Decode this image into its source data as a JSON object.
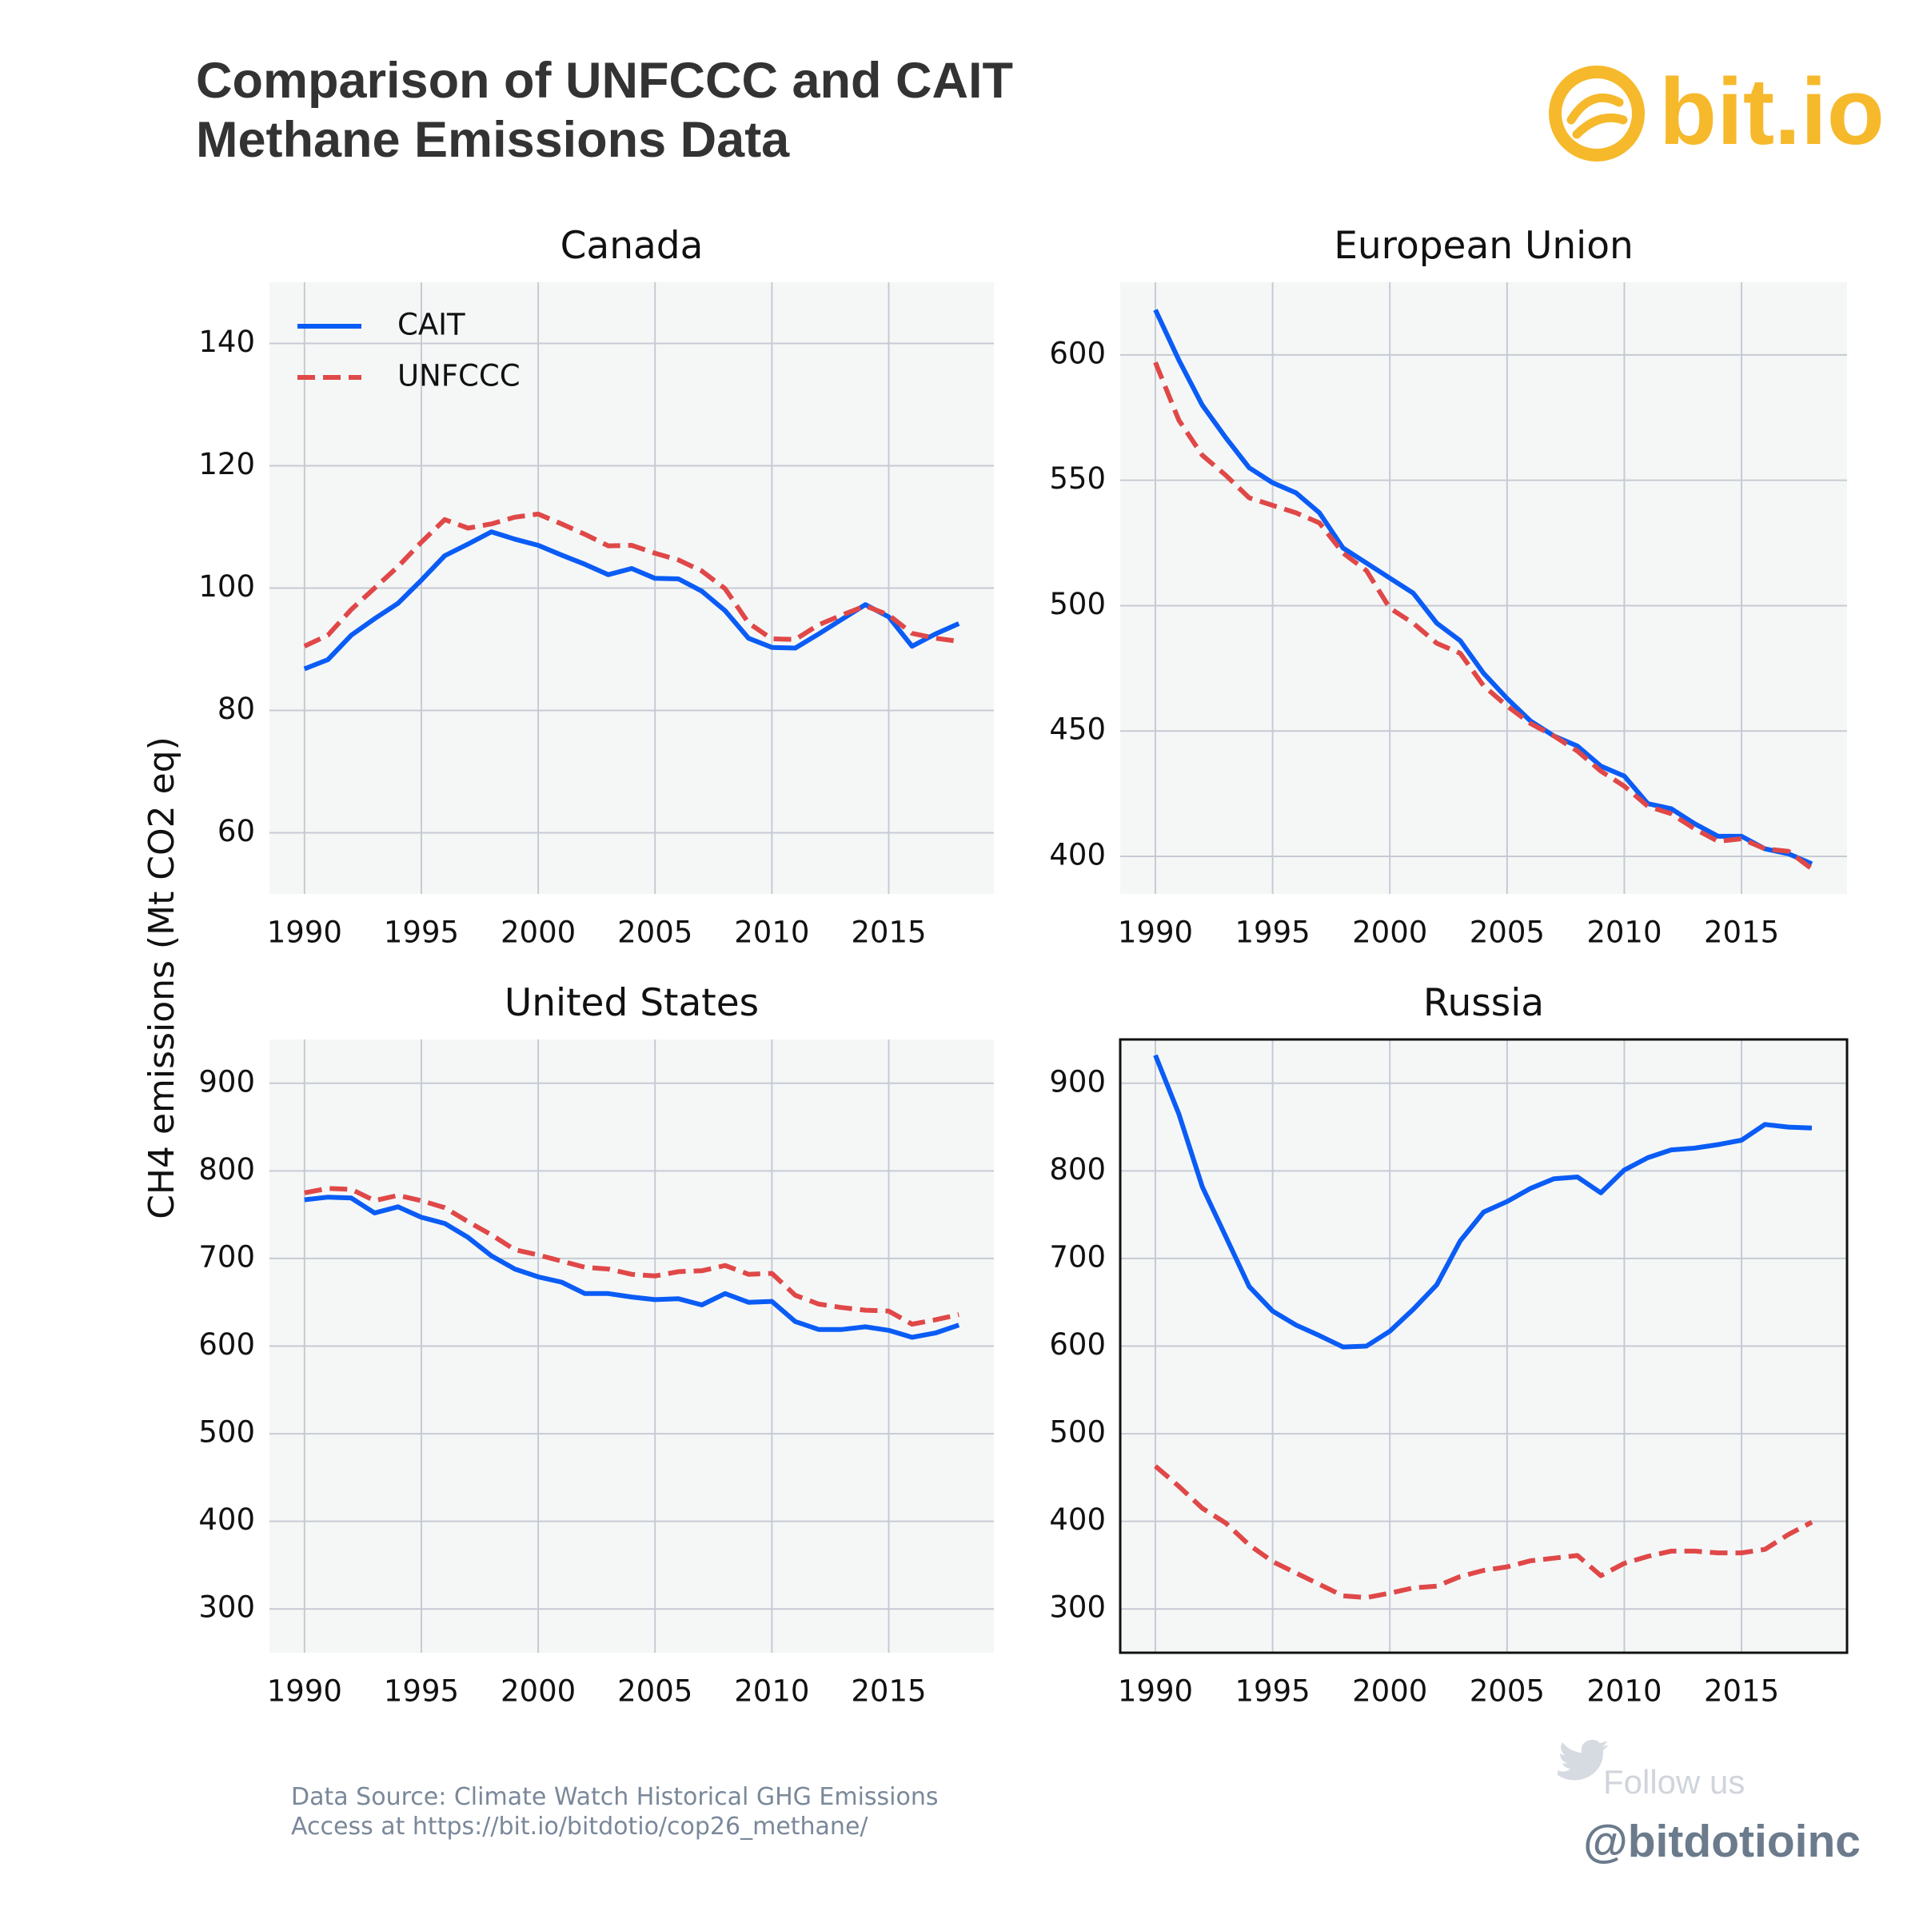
{
  "header": {
    "title": [
      "Comparison of UNFCCC and CAIT",
      "Methane Emissions Data"
    ],
    "logo": "bit.io"
  },
  "y_label": "CH4 emissions (Mt CO2 eq)",
  "footer": {
    "source": [
      "Data Source: Climate Watch Historical GHG Emissions",
      "Access at https://bit.io/bitdotio/cop26_methane/"
    ],
    "follow": "Follow us",
    "handle": "@bitdotioinc"
  },
  "chart_data": [
    {
      "type": "line",
      "title": "Canada",
      "x": [
        1990,
        1991,
        1992,
        1993,
        1994,
        1995,
        1996,
        1997,
        1998,
        1999,
        2000,
        2001,
        2002,
        2003,
        2004,
        2005,
        2006,
        2007,
        2008,
        2009,
        2010,
        2011,
        2012,
        2013,
        2014,
        2015,
        2016,
        2017,
        2018
      ],
      "xlim": [
        1988.5,
        2019.5
      ],
      "xticks": [
        1990,
        1995,
        2000,
        2005,
        2010,
        2015
      ],
      "ylim": [
        50,
        150
      ],
      "yticks": [
        60,
        80,
        100,
        120,
        140
      ],
      "grid": true,
      "legend": "upper left",
      "series": [
        {
          "name": "CAIT",
          "color": "#0a5cf5",
          "dash": false,
          "values": [
            86.8,
            88.3,
            92.3,
            95,
            97.5,
            101.3,
            105.3,
            107.2,
            109.2,
            108,
            107,
            105.4,
            103.9,
            102.2,
            103.2,
            101.6,
            101.5,
            99.5,
            96.3,
            91.8,
            90.3,
            90.2,
            92.5,
            94.9,
            97.3,
            95.3,
            90.5,
            92.5,
            94.2
          ]
        },
        {
          "name": "UNFCCC",
          "color": "#e04848",
          "dash": true,
          "values": [
            90.5,
            92.3,
            96.5,
            100,
            103.5,
            107.5,
            111.2,
            109.8,
            110.5,
            111.6,
            112.1,
            110.5,
            108.8,
            106.9,
            107,
            105.7,
            104.6,
            102.8,
            99.9,
            94.3,
            91.7,
            91.6,
            94,
            95.6,
            97.1,
            95.6,
            92.6,
            91.8,
            91.3
          ]
        }
      ]
    },
    {
      "type": "line",
      "title": "European Union",
      "x": [
        1990,
        1991,
        1992,
        1993,
        1994,
        1995,
        1996,
        1997,
        1998,
        1999,
        2000,
        2001,
        2002,
        2003,
        2004,
        2005,
        2006,
        2007,
        2008,
        2009,
        2010,
        2011,
        2012,
        2013,
        2014,
        2015,
        2016,
        2017,
        2018
      ],
      "xlim": [
        1988.5,
        2019.5
      ],
      "xticks": [
        1990,
        1995,
        2000,
        2005,
        2010,
        2015
      ],
      "ylim": [
        385,
        629
      ],
      "yticks": [
        400,
        450,
        500,
        550,
        600
      ],
      "grid": true,
      "series": [
        {
          "name": "CAIT",
          "color": "#0a5cf5",
          "dash": false,
          "values": [
            618,
            598,
            580,
            567,
            555,
            549,
            545,
            537,
            523,
            517,
            511,
            505,
            493,
            486,
            473,
            463,
            454,
            448,
            444,
            436,
            432,
            421,
            419,
            413,
            408,
            408,
            403,
            401,
            397
          ]
        },
        {
          "name": "UNFCCC",
          "color": "#e04848",
          "dash": true,
          "values": [
            597,
            574,
            560,
            552,
            543,
            540,
            537,
            533,
            521,
            514,
            499,
            493,
            485,
            481,
            468,
            460,
            453,
            448,
            442,
            434,
            428,
            420,
            417,
            411,
            406,
            407,
            403,
            402,
            395
          ]
        }
      ]
    },
    {
      "type": "line",
      "title": "United States",
      "x": [
        1990,
        1991,
        1992,
        1993,
        1994,
        1995,
        1996,
        1997,
        1998,
        1999,
        2000,
        2001,
        2002,
        2003,
        2004,
        2005,
        2006,
        2007,
        2008,
        2009,
        2010,
        2011,
        2012,
        2013,
        2014,
        2015,
        2016,
        2017,
        2018
      ],
      "xlim": [
        1988.5,
        2019.5
      ],
      "xticks": [
        1990,
        1995,
        2000,
        2005,
        2010,
        2015
      ],
      "ylim": [
        250,
        950
      ],
      "yticks": [
        300,
        400,
        500,
        600,
        700,
        800,
        900
      ],
      "grid": true,
      "series": [
        {
          "name": "CAIT",
          "color": "#0a5cf5",
          "dash": false,
          "values": [
            767,
            770,
            769,
            752,
            759,
            747,
            740,
            724,
            703,
            688,
            679,
            673,
            660,
            660,
            656,
            653,
            654,
            647,
            660,
            650,
            651,
            628,
            619,
            619,
            622,
            618,
            610,
            615,
            624
          ]
        },
        {
          "name": "UNFCCC",
          "color": "#e04848",
          "dash": true,
          "values": [
            775,
            780,
            779,
            766,
            772,
            766,
            758,
            742,
            727,
            710,
            704,
            697,
            690,
            688,
            682,
            680,
            685,
            686,
            692,
            682,
            683,
            658,
            648,
            644,
            641,
            640,
            625,
            630,
            636
          ]
        }
      ]
    },
    {
      "type": "line",
      "title": "Russia",
      "x": [
        1990,
        1991,
        1992,
        1993,
        1994,
        1995,
        1996,
        1997,
        1998,
        1999,
        2000,
        2001,
        2002,
        2003,
        2004,
        2005,
        2006,
        2007,
        2008,
        2009,
        2010,
        2011,
        2012,
        2013,
        2014,
        2015,
        2016,
        2017,
        2018
      ],
      "xlim": [
        1988.5,
        2019.5
      ],
      "xticks": [
        1990,
        1995,
        2000,
        2005,
        2010,
        2015
      ],
      "ylim": [
        250,
        950
      ],
      "yticks": [
        300,
        400,
        500,
        600,
        700,
        800,
        900
      ],
      "grid": true,
      "frame": true,
      "series": [
        {
          "name": "CAIT",
          "color": "#0a5cf5",
          "dash": false,
          "values": [
            932,
            865,
            782,
            725,
            668,
            640,
            624,
            612,
            599,
            600,
            617,
            642,
            670,
            720,
            753,
            765,
            780,
            791,
            793,
            775,
            801,
            815,
            824,
            826,
            830,
            835,
            853,
            850,
            849
          ]
        },
        {
          "name": "UNFCCC",
          "color": "#e04848",
          "dash": true,
          "values": [
            463,
            440,
            415,
            398,
            373,
            354,
            341,
            328,
            315,
            313,
            318,
            324,
            326,
            337,
            344,
            348,
            355,
            358,
            361,
            338,
            352,
            360,
            366,
            366,
            364,
            364,
            368,
            385,
            399
          ]
        }
      ]
    }
  ]
}
